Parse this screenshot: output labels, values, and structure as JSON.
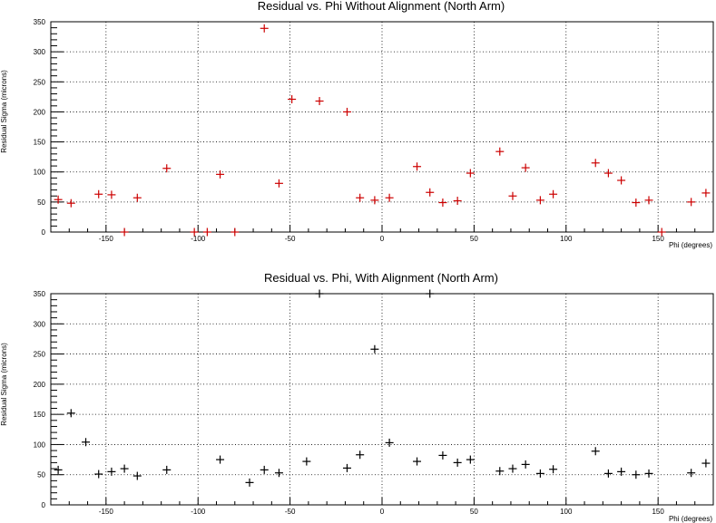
{
  "chart_data": [
    {
      "type": "scatter",
      "title": "Residual vs. Phi Without Alignment (North Arm)",
      "xlabel": "Phi (degrees)",
      "ylabel": "Residual Sigma (microns)",
      "xlim": [
        -180,
        180
      ],
      "ylim": [
        0,
        350
      ],
      "x_ticks": [
        -150,
        -100,
        -50,
        0,
        50,
        100,
        150
      ],
      "y_ticks": [
        0,
        50,
        100,
        150,
        200,
        250,
        300,
        350
      ],
      "grid": true,
      "marker_color": "#cc0000",
      "points": [
        {
          "x": -176,
          "y": 54
        },
        {
          "x": -169,
          "y": 48
        },
        {
          "x": -154,
          "y": 63
        },
        {
          "x": -147,
          "y": 62
        },
        {
          "x": -140,
          "y": 0
        },
        {
          "x": -133,
          "y": 57
        },
        {
          "x": -117,
          "y": 106
        },
        {
          "x": -102,
          "y": 0
        },
        {
          "x": -95,
          "y": 0
        },
        {
          "x": -88,
          "y": 96
        },
        {
          "x": -80,
          "y": 0
        },
        {
          "x": -64,
          "y": 339
        },
        {
          "x": -56,
          "y": 81
        },
        {
          "x": -49,
          "y": 221
        },
        {
          "x": -34,
          "y": 218
        },
        {
          "x": -19,
          "y": 200
        },
        {
          "x": -12,
          "y": 57
        },
        {
          "x": -4,
          "y": 53
        },
        {
          "x": 4,
          "y": 57
        },
        {
          "x": 19,
          "y": 109
        },
        {
          "x": 26,
          "y": 66
        },
        {
          "x": 33,
          "y": 49
        },
        {
          "x": 41,
          "y": 52
        },
        {
          "x": 48,
          "y": 98
        },
        {
          "x": 64,
          "y": 134
        },
        {
          "x": 71,
          "y": 60
        },
        {
          "x": 78,
          "y": 107
        },
        {
          "x": 86,
          "y": 53
        },
        {
          "x": 93,
          "y": 63
        },
        {
          "x": 116,
          "y": 115
        },
        {
          "x": 123,
          "y": 98
        },
        {
          "x": 130,
          "y": 86
        },
        {
          "x": 138,
          "y": 49
        },
        {
          "x": 145,
          "y": 53
        },
        {
          "x": 152,
          "y": 0
        },
        {
          "x": 168,
          "y": 50
        },
        {
          "x": 176,
          "y": 65
        }
      ]
    },
    {
      "type": "scatter",
      "title": "Residual vs. Phi, With Alignment (North Arm)",
      "xlabel": "Phi (degrees)",
      "ylabel": "Residual Sigma (microns)",
      "xlim": [
        -180,
        180
      ],
      "ylim": [
        0,
        350
      ],
      "x_ticks": [
        -150,
        -100,
        -50,
        0,
        50,
        100,
        150
      ],
      "y_ticks": [
        0,
        50,
        100,
        150,
        200,
        250,
        300,
        350
      ],
      "grid": true,
      "marker_color": "#000000",
      "points": [
        {
          "x": -176,
          "y": 58
        },
        {
          "x": -169,
          "y": 152
        },
        {
          "x": -161,
          "y": 104
        },
        {
          "x": -154,
          "y": 51
        },
        {
          "x": -147,
          "y": 55
        },
        {
          "x": -140,
          "y": 60
        },
        {
          "x": -133,
          "y": 48
        },
        {
          "x": -117,
          "y": 58
        },
        {
          "x": -88,
          "y": 75
        },
        {
          "x": -72,
          "y": 37
        },
        {
          "x": -64,
          "y": 58
        },
        {
          "x": -56,
          "y": 53
        },
        {
          "x": -41,
          "y": 72
        },
        {
          "x": -34,
          "y": 350
        },
        {
          "x": -19,
          "y": 61
        },
        {
          "x": -12,
          "y": 83
        },
        {
          "x": -4,
          "y": 258
        },
        {
          "x": 4,
          "y": 103
        },
        {
          "x": 19,
          "y": 72
        },
        {
          "x": 26,
          "y": 350
        },
        {
          "x": 33,
          "y": 82
        },
        {
          "x": 41,
          "y": 70
        },
        {
          "x": 48,
          "y": 75
        },
        {
          "x": 64,
          "y": 56
        },
        {
          "x": 71,
          "y": 60
        },
        {
          "x": 78,
          "y": 67
        },
        {
          "x": 86,
          "y": 52
        },
        {
          "x": 93,
          "y": 59
        },
        {
          "x": 116,
          "y": 89
        },
        {
          "x": 123,
          "y": 52
        },
        {
          "x": 130,
          "y": 55
        },
        {
          "x": 138,
          "y": 50
        },
        {
          "x": 145,
          "y": 52
        },
        {
          "x": 168,
          "y": 53
        },
        {
          "x": 176,
          "y": 69
        }
      ]
    }
  ]
}
